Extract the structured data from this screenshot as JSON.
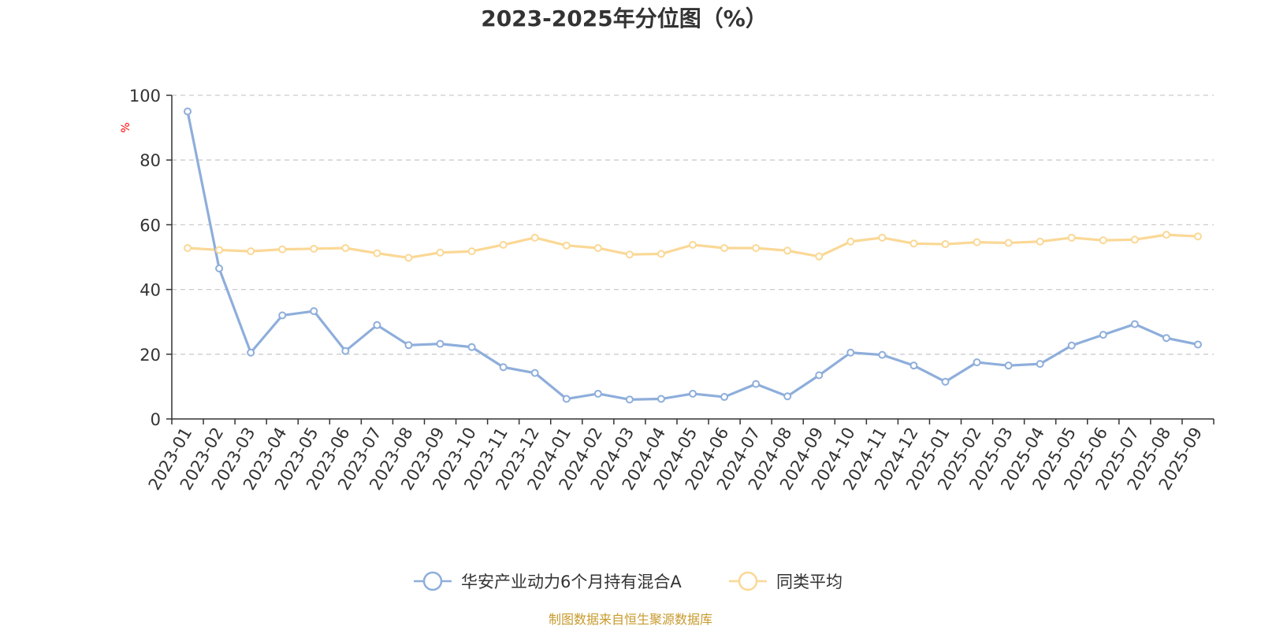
{
  "chart_data": {
    "type": "line",
    "title": "2023-2025年分位图（%）",
    "ylabel": "%",
    "xlabel": "",
    "ylim": [
      0,
      100
    ],
    "yticks": [
      0,
      20,
      40,
      60,
      80,
      100
    ],
    "grid": true,
    "legend_position": "bottom",
    "categories": [
      "2023-01",
      "2023-02",
      "2023-03",
      "2023-04",
      "2023-05",
      "2023-06",
      "2023-07",
      "2023-08",
      "2023-09",
      "2023-10",
      "2023-11",
      "2023-12",
      "2024-01",
      "2024-02",
      "2024-03",
      "2024-04",
      "2024-05",
      "2024-06",
      "2024-07",
      "2024-08",
      "2024-09",
      "2024-10",
      "2024-11",
      "2024-12",
      "2025-01",
      "2025-02",
      "2025-03",
      "2025-04",
      "2025-05",
      "2025-06",
      "2025-07",
      "2025-08",
      "2025-09"
    ],
    "series": [
      {
        "name": "华安产业动力6个月持有混合A",
        "color": "#8eaedb",
        "values": [
          95,
          46.5,
          20.5,
          32,
          33.3,
          21,
          29,
          22.8,
          23.2,
          22.2,
          16,
          14.2,
          6.2,
          7.8,
          6,
          6.2,
          7.8,
          6.8,
          10.8,
          7,
          13.5,
          20.5,
          19.8,
          16.5,
          11.5,
          17.5,
          16.5,
          17,
          22.7,
          26,
          29.3,
          25,
          23
        ]
      },
      {
        "name": "同类平均",
        "color": "#fad896",
        "values": [
          52.8,
          52.2,
          51.8,
          52.4,
          52.6,
          52.8,
          51.2,
          49.8,
          51.4,
          51.8,
          53.8,
          56,
          53.6,
          52.8,
          50.8,
          51,
          53.8,
          52.8,
          52.8,
          52,
          50.2,
          54.8,
          56,
          54.2,
          54,
          54.6,
          54.4,
          54.8,
          56,
          55.2,
          55.4,
          56.9,
          56.4
        ]
      }
    ],
    "unit_color": "#ff0000"
  },
  "source": {
    "text": "制图数据来自恒生聚源数据库",
    "color": "#c79a2e"
  }
}
